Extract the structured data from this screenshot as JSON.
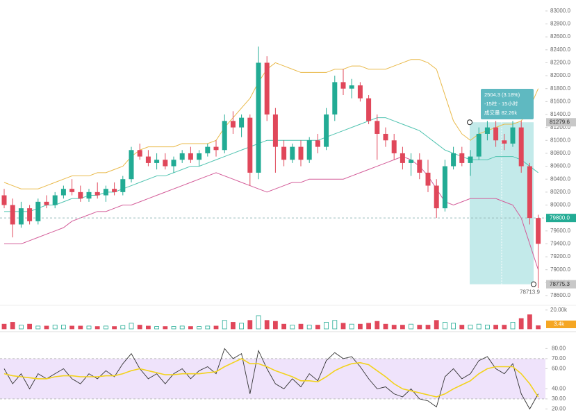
{
  "chart_data": {
    "type": "candlestick",
    "candles": [
      [
        80150,
        80250,
        79950,
        80000
      ],
      [
        80000,
        80100,
        79500,
        79700
      ],
      [
        79700,
        80050,
        79650,
        79950
      ],
      [
        79950,
        80000,
        79700,
        79750
      ],
      [
        79750,
        80100,
        79700,
        80050
      ],
      [
        80050,
        80150,
        79950,
        80000
      ],
      [
        80000,
        80200,
        79950,
        80150
      ],
      [
        80150,
        80300,
        80100,
        80250
      ],
      [
        80250,
        80400,
        80150,
        80200
      ],
      [
        80200,
        80300,
        80050,
        80100
      ],
      [
        80100,
        80250,
        80050,
        80200
      ],
      [
        80200,
        80350,
        80100,
        80150
      ],
      [
        80150,
        80300,
        80050,
        80250
      ],
      [
        80250,
        80350,
        80150,
        80200
      ],
      [
        80200,
        80450,
        80150,
        80400
      ],
      [
        80400,
        80900,
        80350,
        80850
      ],
      [
        80850,
        80950,
        80700,
        80750
      ],
      [
        80750,
        80850,
        80600,
        80650
      ],
      [
        80650,
        80800,
        80550,
        80700
      ],
      [
        80700,
        80800,
        80550,
        80600
      ],
      [
        80600,
        80750,
        80500,
        80700
      ],
      [
        80700,
        80850,
        80650,
        80800
      ],
      [
        80800,
        80900,
        80650,
        80700
      ],
      [
        80700,
        80850,
        80600,
        80800
      ],
      [
        80800,
        80950,
        80750,
        80900
      ],
      [
        80900,
        81000,
        80750,
        80850
      ],
      [
        80850,
        81400,
        80800,
        81300
      ],
      [
        81300,
        81450,
        81100,
        81200
      ],
      [
        81200,
        81400,
        81050,
        81350
      ],
      [
        81350,
        81400,
        80300,
        80500
      ],
      [
        80500,
        82450,
        80400,
        82200
      ],
      [
        82200,
        82300,
        81300,
        81400
      ],
      [
        81400,
        81500,
        80500,
        80900
      ],
      [
        80900,
        81000,
        80600,
        80700
      ],
      [
        80700,
        80950,
        80650,
        80900
      ],
      [
        80900,
        81000,
        80600,
        80700
      ],
      [
        80700,
        81050,
        80650,
        81000
      ],
      [
        81000,
        81100,
        80800,
        80900
      ],
      [
        80900,
        81500,
        80850,
        81400
      ],
      [
        81400,
        82000,
        81300,
        81900
      ],
      [
        81900,
        82100,
        81700,
        81800
      ],
      [
        81800,
        81950,
        81650,
        81850
      ],
      [
        81850,
        81900,
        81600,
        81650
      ],
      [
        81650,
        81700,
        81250,
        81300
      ],
      [
        81300,
        81400,
        80700,
        81100
      ],
      [
        81100,
        81200,
        80900,
        81000
      ],
      [
        81000,
        81100,
        80700,
        80800
      ],
      [
        80800,
        80900,
        80550,
        80650
      ],
      [
        80650,
        80800,
        80450,
        80700
      ],
      [
        80700,
        80800,
        80400,
        80500
      ],
      [
        80500,
        80700,
        80200,
        80300
      ],
      [
        80300,
        80400,
        79800,
        79950
      ],
      [
        79950,
        80700,
        79900,
        80600
      ],
      [
        80600,
        80900,
        80550,
        80800
      ],
      [
        80800,
        80900,
        80600,
        80650
      ],
      [
        80650,
        80850,
        80450,
        80750
      ],
      [
        80750,
        81200,
        80700,
        81100
      ],
      [
        81100,
        81300,
        81000,
        81200
      ],
      [
        81200,
        81300,
        80900,
        81000
      ],
      [
        81000,
        81100,
        80850,
        80950
      ],
      [
        80950,
        81300,
        80900,
        81200
      ],
      [
        81200,
        81300,
        80500,
        80600
      ],
      [
        80600,
        80650,
        79700,
        79800
      ],
      [
        79800,
        79850,
        78713.9,
        79400
      ]
    ],
    "up_color": "#22ab94",
    "down_color": "#e0475a",
    "ylim": [
      78450,
      83170
    ],
    "yticks": [
      {
        "value": 78600,
        "label": "78600.0"
      },
      {
        "value": 78800,
        "label": "78800.0"
      },
      {
        "value": 79000,
        "label": "79000.0"
      },
      {
        "value": 79200,
        "label": "79200.0"
      },
      {
        "value": 79400,
        "label": "79400.0"
      },
      {
        "value": 79600,
        "label": "79600.0"
      },
      {
        "value": 79800,
        "label": "79800.0"
      },
      {
        "value": 80000,
        "label": "80000.0"
      },
      {
        "value": 80200,
        "label": "80200.0"
      },
      {
        "value": 80400,
        "label": "80400.0"
      },
      {
        "value": 80600,
        "label": "80600.0"
      },
      {
        "value": 80800,
        "label": "80800.0"
      },
      {
        "value": 81000,
        "label": "81000.0"
      },
      {
        "value": 81200,
        "label": "81200.0"
      },
      {
        "value": 81400,
        "label": "81400.0"
      },
      {
        "value": 81600,
        "label": "81600.0"
      },
      {
        "value": 81800,
        "label": "81800.0"
      },
      {
        "value": 82000,
        "label": "82000.0"
      },
      {
        "value": 82200,
        "label": "82200.0"
      },
      {
        "value": 82400,
        "label": "82400.0"
      },
      {
        "value": 82600,
        "label": "82600.0"
      },
      {
        "value": 82800,
        "label": "82800.0"
      },
      {
        "value": 83000,
        "label": "83000.0"
      }
    ],
    "bollinger": [
      {
        "color": "#e9b949",
        "values": [
          80350,
          80300,
          80250,
          80250,
          80250,
          80300,
          80350,
          80400,
          80450,
          80450,
          80450,
          80500,
          80500,
          80550,
          80600,
          80750,
          80850,
          80900,
          80900,
          80900,
          80900,
          80950,
          80950,
          80950,
          80950,
          81000,
          81200,
          81350,
          81500,
          81650,
          81900,
          82100,
          82200,
          82150,
          82100,
          82050,
          82050,
          82050,
          82050,
          82100,
          82100,
          82150,
          82150,
          82100,
          82100,
          82100,
          82150,
          82200,
          82250,
          82250,
          82200,
          82100,
          81700,
          81300,
          81100,
          81000,
          81100,
          81150,
          81200,
          81250,
          81250,
          81300,
          81500,
          81800
        ]
      },
      {
        "color": "#4fc3b0",
        "values": [
          79900,
          79900,
          79900,
          79900,
          79950,
          80000,
          80000,
          80050,
          80100,
          80100,
          80150,
          80150,
          80200,
          80200,
          80250,
          80300,
          80350,
          80400,
          80450,
          80450,
          80500,
          80550,
          80600,
          80600,
          80650,
          80700,
          80750,
          80800,
          80850,
          80900,
          80950,
          81000,
          81000,
          81000,
          81000,
          81000,
          81000,
          81000,
          81050,
          81100,
          81150,
          81200,
          81250,
          81300,
          81350,
          81350,
          81300,
          81250,
          81200,
          81150,
          81050,
          80950,
          80850,
          80800,
          80750,
          80700,
          80700,
          80700,
          80750,
          80750,
          80750,
          80700,
          80600,
          80500
        ]
      },
      {
        "color": "#d35b98",
        "values": [
          79400,
          79400,
          79400,
          79450,
          79500,
          79550,
          79600,
          79650,
          79750,
          79800,
          79850,
          79900,
          79900,
          79950,
          80000,
          80000,
          80050,
          80100,
          80150,
          80200,
          80250,
          80300,
          80350,
          80400,
          80450,
          80500,
          80450,
          80400,
          80350,
          80300,
          80250,
          80200,
          80250,
          80300,
          80350,
          80350,
          80400,
          80400,
          80400,
          80400,
          80400,
          80450,
          80500,
          80550,
          80600,
          80650,
          80700,
          80750,
          80700,
          80600,
          80450,
          80250,
          80050,
          80000,
          80050,
          80100,
          80100,
          80100,
          80100,
          80050,
          80000,
          79800,
          79400,
          79000
        ]
      }
    ],
    "price_labels": [
      {
        "value": 81279.6,
        "label": "81279.6",
        "color": "#c8c8c8"
      },
      {
        "value": 79800,
        "label": "79800.0",
        "color": "#22ab94"
      },
      {
        "value": 78775.3,
        "label": "78775.3",
        "color": "#c8c8c8"
      }
    ],
    "low": {
      "value": 78713.9,
      "label": "78713.9"
    },
    "measure": {
      "from": 78775.3,
      "to": 81279.6,
      "lines": [
        "2504.3 (3.18%)",
        "-15柱 - 15小时",
        "成交量 82.26k"
      ]
    },
    "volume": {
      "ylim": [
        0,
        25000
      ],
      "yticks": [
        {
          "value": 20000,
          "label": "20.00k"
        }
      ],
      "current": "3.4k",
      "values": [
        5000,
        7000,
        4000,
        5000,
        3000,
        3000,
        4000,
        4000,
        3000,
        3000,
        3000,
        2500,
        3000,
        2500,
        3500,
        6000,
        4000,
        3000,
        2500,
        2500,
        2500,
        3000,
        2500,
        2500,
        3000,
        3000,
        9000,
        7000,
        6000,
        9000,
        14000,
        9000,
        8000,
        5000,
        4000,
        5000,
        4000,
        4000,
        7000,
        9000,
        6000,
        5000,
        5000,
        6000,
        8000,
        5000,
        4000,
        4000,
        5000,
        4000,
        4000,
        9000,
        7000,
        6000,
        4000,
        4000,
        5000,
        4000,
        4000,
        4000,
        7000,
        11000,
        15000,
        3400
      ]
    },
    "rsi": {
      "ylim": [
        12,
        92
      ],
      "band": [
        30,
        70
      ],
      "yticks": [
        {
          "value": 20,
          "label": "20.00"
        },
        {
          "value": 30,
          "label": "30.00"
        },
        {
          "value": 40,
          "label": "40.00"
        },
        {
          "value": 60,
          "label": "60.00"
        },
        {
          "value": 70,
          "label": "70.00"
        },
        {
          "value": 80,
          "label": "80.00"
        }
      ],
      "series": [
        {
          "color": "#333333",
          "values": [
            60,
            45,
            55,
            40,
            55,
            50,
            55,
            60,
            50,
            45,
            55,
            50,
            58,
            52,
            65,
            75,
            60,
            50,
            55,
            45,
            55,
            60,
            50,
            58,
            62,
            55,
            80,
            70,
            75,
            35,
            78,
            60,
            45,
            40,
            50,
            42,
            55,
            48,
            68,
            76,
            70,
            72,
            62,
            50,
            40,
            42,
            35,
            32,
            40,
            30,
            28,
            22,
            52,
            60,
            50,
            55,
            68,
            72,
            60,
            55,
            65,
            35,
            20,
            35
          ]
        },
        {
          "color": "#f2d21b",
          "values": [
            55,
            53,
            52,
            51,
            50,
            50,
            52,
            53,
            53,
            52,
            52,
            52,
            53,
            53,
            55,
            58,
            60,
            58,
            56,
            54,
            54,
            55,
            55,
            55,
            56,
            57,
            62,
            66,
            70,
            65,
            65,
            62,
            58,
            55,
            52,
            48,
            48,
            47,
            52,
            58,
            62,
            65,
            66,
            64,
            58,
            52,
            45,
            40,
            38,
            36,
            34,
            32,
            35,
            40,
            44,
            48,
            55,
            60,
            62,
            62,
            62,
            55,
            45,
            32
          ]
        }
      ]
    }
  }
}
